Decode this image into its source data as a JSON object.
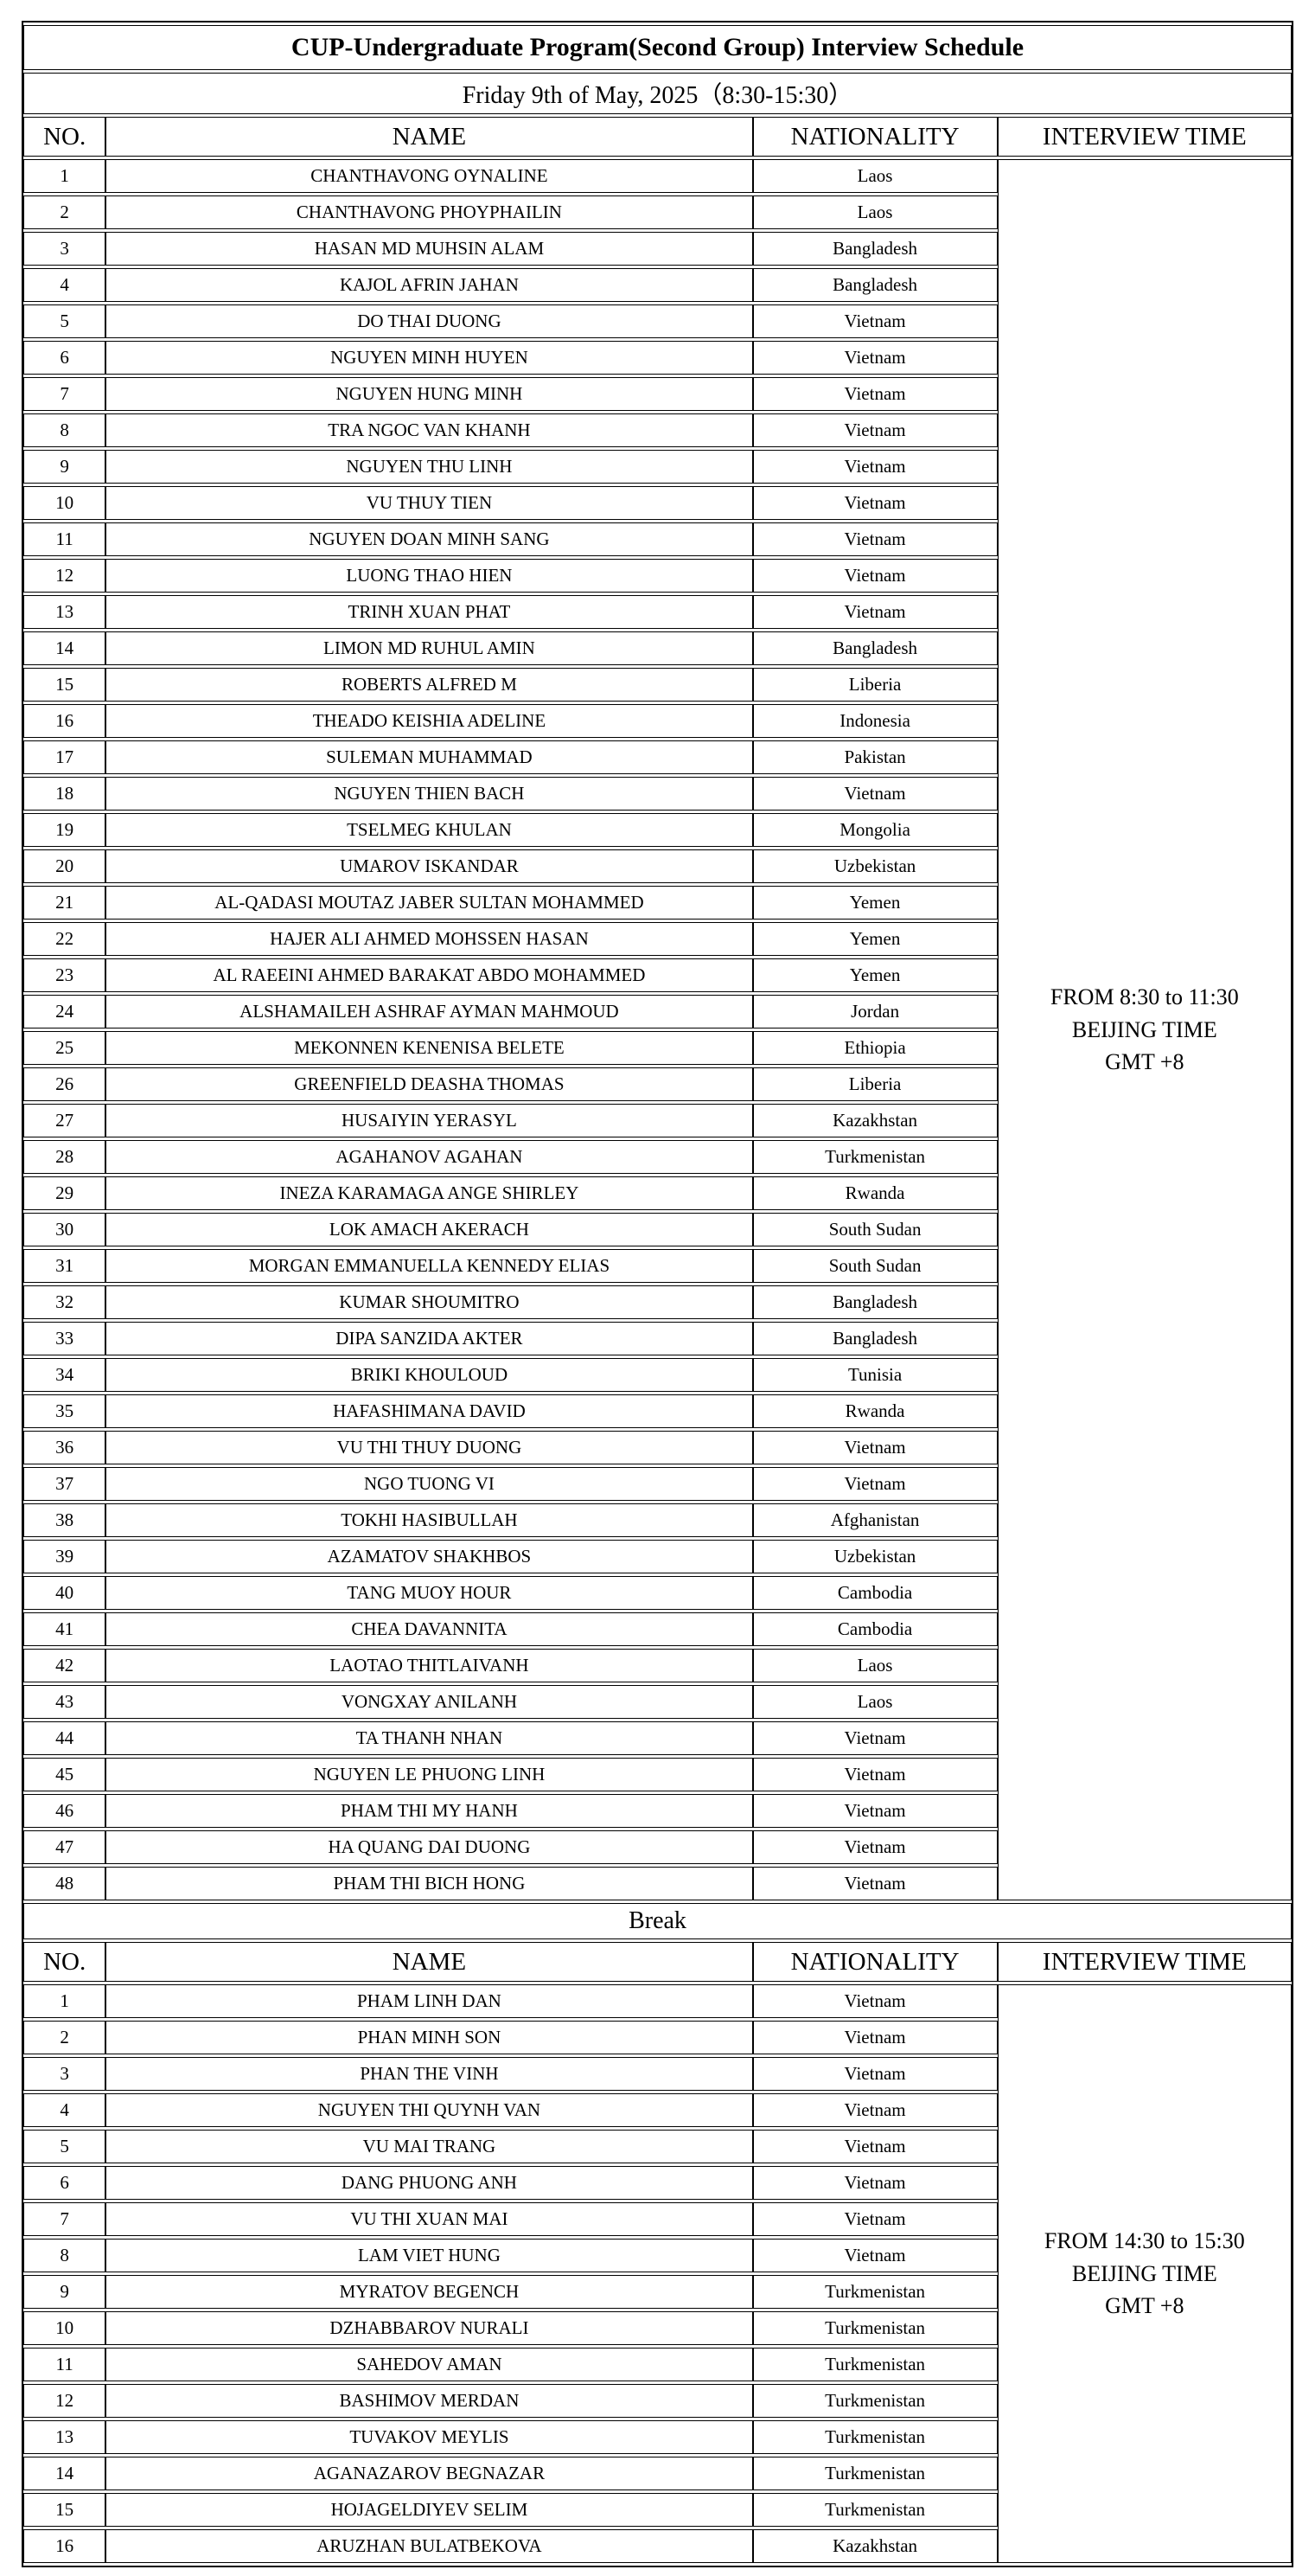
{
  "title": "CUP-Undergraduate Program(Second Group) Interview Schedule",
  "date_line": "Friday 9th of May, 2025（8:30-15:30）",
  "columns": [
    "NO.",
    "NAME",
    "NATIONALITY",
    "INTERVIEW TIME"
  ],
  "break_label": "Break",
  "sections": [
    {
      "time_lines": [
        "FROM 8:30 to 11:30",
        "BEIJING TIME",
        "GMT +8"
      ],
      "rows": [
        {
          "no": "1",
          "name": "CHANTHAVONG OYNALINE",
          "nationality": "Laos"
        },
        {
          "no": "2",
          "name": "CHANTHAVONG PHOYPHAILIN",
          "nationality": "Laos"
        },
        {
          "no": "3",
          "name": "HASAN MD MUHSIN ALAM",
          "nationality": "Bangladesh"
        },
        {
          "no": "4",
          "name": "KAJOL AFRIN JAHAN",
          "nationality": "Bangladesh"
        },
        {
          "no": "5",
          "name": "DO THAI DUONG",
          "nationality": "Vietnam"
        },
        {
          "no": "6",
          "name": "NGUYEN MINH HUYEN",
          "nationality": "Vietnam"
        },
        {
          "no": "7",
          "name": "NGUYEN HUNG MINH",
          "nationality": "Vietnam"
        },
        {
          "no": "8",
          "name": "TRA NGOC VAN KHANH",
          "nationality": "Vietnam"
        },
        {
          "no": "9",
          "name": "NGUYEN THU LINH",
          "nationality": "Vietnam"
        },
        {
          "no": "10",
          "name": "VU THUY TIEN",
          "nationality": "Vietnam"
        },
        {
          "no": "11",
          "name": "NGUYEN DOAN MINH SANG",
          "nationality": "Vietnam"
        },
        {
          "no": "12",
          "name": "LUONG THAO HIEN",
          "nationality": "Vietnam"
        },
        {
          "no": "13",
          "name": "TRINH XUAN PHAT",
          "nationality": "Vietnam"
        },
        {
          "no": "14",
          "name": "LIMON MD RUHUL AMIN",
          "nationality": "Bangladesh"
        },
        {
          "no": "15",
          "name": "ROBERTS ALFRED M",
          "nationality": "Liberia"
        },
        {
          "no": "16",
          "name": "THEADO KEISHIA ADELINE",
          "nationality": "Indonesia"
        },
        {
          "no": "17",
          "name": "SULEMAN MUHAMMAD",
          "nationality": "Pakistan"
        },
        {
          "no": "18",
          "name": "NGUYEN THIEN BACH",
          "nationality": "Vietnam"
        },
        {
          "no": "19",
          "name": "TSELMEG KHULAN",
          "nationality": "Mongolia"
        },
        {
          "no": "20",
          "name": "UMAROV ISKANDAR",
          "nationality": "Uzbekistan"
        },
        {
          "no": "21",
          "name": "AL-QADASI MOUTAZ JABER SULTAN MOHAMMED",
          "nationality": "Yemen"
        },
        {
          "no": "22",
          "name": "HAJER ALI AHMED MOHSSEN HASAN",
          "nationality": "Yemen"
        },
        {
          "no": "23",
          "name": "AL RAEEINI AHMED BARAKAT ABDO MOHAMMED",
          "nationality": "Yemen"
        },
        {
          "no": "24",
          "name": "ALSHAMAILEH ASHRAF AYMAN MAHMOUD",
          "nationality": "Jordan"
        },
        {
          "no": "25",
          "name": "MEKONNEN KENENISA BELETE",
          "nationality": "Ethiopia"
        },
        {
          "no": "26",
          "name": "GREENFIELD DEASHA THOMAS",
          "nationality": "Liberia"
        },
        {
          "no": "27",
          "name": "HUSAIYIN YERASYL",
          "nationality": "Kazakhstan"
        },
        {
          "no": "28",
          "name": "AGAHANOV AGAHAN",
          "nationality": "Turkmenistan"
        },
        {
          "no": "29",
          "name": "INEZA KARAMAGA ANGE SHIRLEY",
          "nationality": "Rwanda"
        },
        {
          "no": "30",
          "name": "LOK AMACH AKERACH",
          "nationality": "South Sudan"
        },
        {
          "no": "31",
          "name": "MORGAN EMMANUELLA KENNEDY ELIAS",
          "nationality": "South Sudan"
        },
        {
          "no": "32",
          "name": "KUMAR SHOUMITRO",
          "nationality": "Bangladesh"
        },
        {
          "no": "33",
          "name": "DIPA SANZIDA AKTER",
          "nationality": "Bangladesh"
        },
        {
          "no": "34",
          "name": "BRIKI KHOULOUD",
          "nationality": "Tunisia"
        },
        {
          "no": "35",
          "name": "HAFASHIMANA DAVID",
          "nationality": "Rwanda"
        },
        {
          "no": "36",
          "name": "VU THI THUY DUONG",
          "nationality": "Vietnam"
        },
        {
          "no": "37",
          "name": "NGO TUONG VI",
          "nationality": "Vietnam"
        },
        {
          "no": "38",
          "name": "TOKHI HASIBULLAH",
          "nationality": "Afghanistan"
        },
        {
          "no": "39",
          "name": "AZAMATOV SHAKHBOS",
          "nationality": "Uzbekistan"
        },
        {
          "no": "40",
          "name": "TANG MUOY HOUR",
          "nationality": "Cambodia"
        },
        {
          "no": "41",
          "name": "CHEA DAVANNITA",
          "nationality": "Cambodia"
        },
        {
          "no": "42",
          "name": "LAOTAO THITLAIVANH",
          "nationality": "Laos"
        },
        {
          "no": "43",
          "name": "VONGXAY ANILANH",
          "nationality": "Laos"
        },
        {
          "no": "44",
          "name": "TA THANH NHAN",
          "nationality": "Vietnam"
        },
        {
          "no": "45",
          "name": "NGUYEN LE PHUONG LINH",
          "nationality": "Vietnam"
        },
        {
          "no": "46",
          "name": "PHAM THI MY HANH",
          "nationality": "Vietnam"
        },
        {
          "no": "47",
          "name": "HA QUANG DAI DUONG",
          "nationality": "Vietnam"
        },
        {
          "no": "48",
          "name": "PHAM THI BICH HONG",
          "nationality": "Vietnam"
        }
      ]
    },
    {
      "time_lines": [
        "FROM 14:30 to 15:30",
        "BEIJING TIME",
        "GMT +8"
      ],
      "rows": [
        {
          "no": "1",
          "name": "PHAM LINH DAN",
          "nationality": "Vietnam"
        },
        {
          "no": "2",
          "name": "PHAN MINH SON",
          "nationality": "Vietnam"
        },
        {
          "no": "3",
          "name": "PHAN THE VINH",
          "nationality": "Vietnam"
        },
        {
          "no": "4",
          "name": "NGUYEN THI QUYNH VAN",
          "nationality": "Vietnam"
        },
        {
          "no": "5",
          "name": "VU MAI TRANG",
          "nationality": "Vietnam"
        },
        {
          "no": "6",
          "name": "DANG PHUONG ANH",
          "nationality": "Vietnam"
        },
        {
          "no": "7",
          "name": "VU THI XUAN MAI",
          "nationality": "Vietnam"
        },
        {
          "no": "8",
          "name": "LAM VIET HUNG",
          "nationality": "Vietnam"
        },
        {
          "no": "9",
          "name": "MYRATOV BEGENCH",
          "nationality": "Turkmenistan"
        },
        {
          "no": "10",
          "name": "DZHABBAROV NURALI",
          "nationality": "Turkmenistan"
        },
        {
          "no": "11",
          "name": "SAHEDOV AMAN",
          "nationality": "Turkmenistan"
        },
        {
          "no": "12",
          "name": "BASHIMOV MERDAN",
          "nationality": "Turkmenistan"
        },
        {
          "no": "13",
          "name": "TUVAKOV MEYLIS",
          "nationality": "Turkmenistan"
        },
        {
          "no": "14",
          "name": "AGANAZAROV BEGNAZAR",
          "nationality": "Turkmenistan"
        },
        {
          "no": "15",
          "name": "HOJAGELDIYEV SELIM",
          "nationality": "Turkmenistan"
        },
        {
          "no": "16",
          "name": "ARUZHAN BULATBEKOVA",
          "nationality": "Kazakhstan"
        }
      ]
    }
  ]
}
